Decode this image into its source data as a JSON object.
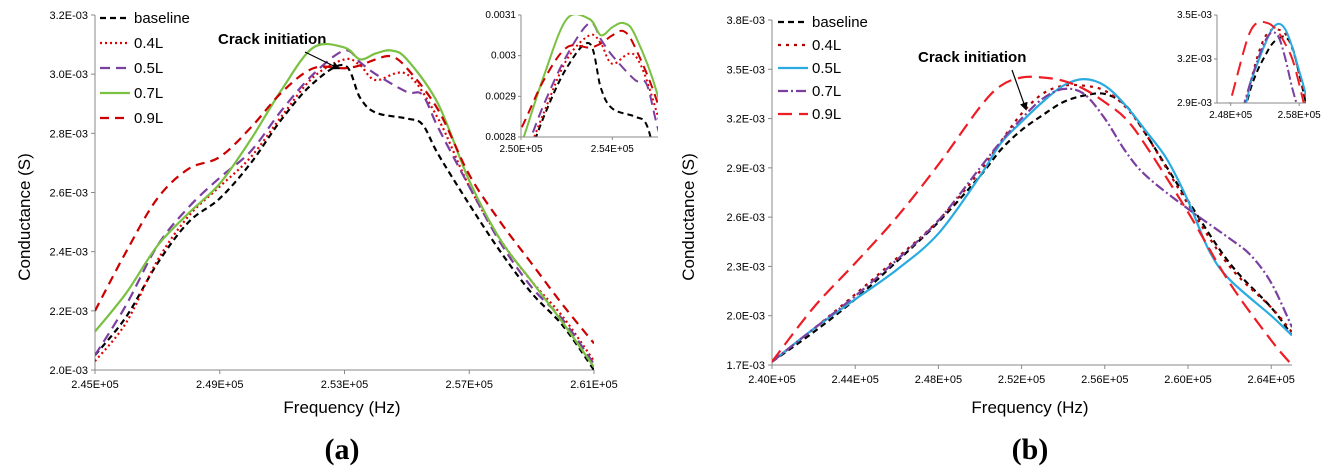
{
  "chart_data": [
    {
      "panel": "(a)",
      "type": "line",
      "xlabel": "Frequency  (Hz)",
      "ylabel": "Conductance (S)",
      "xlim": [
        245000,
        261000
      ],
      "ylim": [
        0.002,
        0.0032
      ],
      "xticks": [
        245000,
        249000,
        253000,
        257000,
        261000
      ],
      "xtick_labels": [
        "2.45E+05",
        "2.49E+05",
        "2.53E+05",
        "2.57E+05",
        "2.61E+05"
      ],
      "yticks": [
        0.002,
        0.0022,
        0.0024,
        0.0026,
        0.0028,
        0.003,
        0.0032
      ],
      "ytick_labels": [
        "2.0E-03",
        "2.2E-03",
        "2.4E-03",
        "2.6E-03",
        "2.8E-03",
        "3.0E-03",
        "3.2E-03"
      ],
      "legend_position": "top-left",
      "annotation": "Crack initiation",
      "annotation_point": [
        252800,
        0.00302
      ],
      "series": [
        {
          "name": "baseline",
          "color": "#000000",
          "dash": "6,4",
          "x": [
            245000,
            246000,
            247000,
            248000,
            249000,
            250000,
            251000,
            252000,
            253000,
            253500,
            254000,
            255000,
            255500,
            256000,
            257000,
            258000,
            259000,
            260000,
            261000
          ],
          "y": [
            0.00205,
            0.00218,
            0.00236,
            0.0025,
            0.00258,
            0.0027,
            0.00285,
            0.00297,
            0.00303,
            0.00292,
            0.00287,
            0.00285,
            0.00283,
            0.00273,
            0.00256,
            0.0024,
            0.00226,
            0.00215,
            0.002
          ]
        },
        {
          "name": "0.4L",
          "color": "#e00000",
          "dash": "2,3",
          "x": [
            245000,
            246000,
            247000,
            248000,
            249000,
            250000,
            251000,
            252000,
            253000,
            253500,
            254000,
            255000,
            256000,
            257000,
            258000,
            259000,
            260000,
            261000
          ],
          "y": [
            0.00203,
            0.00216,
            0.00237,
            0.00252,
            0.00262,
            0.00272,
            0.00286,
            0.00299,
            0.00305,
            0.00303,
            0.00298,
            0.003,
            0.00285,
            0.00262,
            0.00244,
            0.0023,
            0.00218,
            0.00203
          ]
        },
        {
          "name": "0.5L",
          "color": "#7b3fa0",
          "dash": "10,6",
          "x": [
            245000,
            246000,
            247000,
            248000,
            249000,
            250000,
            251000,
            252000,
            253000,
            253500,
            254000,
            255000,
            255500,
            256000,
            257000,
            258000,
            259000,
            260000,
            261000
          ],
          "y": [
            0.00205,
            0.00222,
            0.00242,
            0.00255,
            0.00265,
            0.00274,
            0.00288,
            0.003,
            0.00308,
            0.00304,
            0.003,
            0.00294,
            0.00293,
            0.00282,
            0.00262,
            0.00243,
            0.00228,
            0.00217,
            0.00202
          ]
        },
        {
          "name": "0.7L",
          "color": "#7ac142",
          "dash": "",
          "x": [
            245000,
            246000,
            247000,
            248000,
            249000,
            250000,
            251000,
            252000,
            253000,
            253500,
            254000,
            254500,
            255000,
            256000,
            257000,
            258000,
            259000,
            260000,
            261000
          ],
          "y": [
            0.00213,
            0.00226,
            0.00242,
            0.00253,
            0.00263,
            0.00278,
            0.00295,
            0.00309,
            0.00309,
            0.00305,
            0.00307,
            0.00308,
            0.00305,
            0.0029,
            0.00264,
            0.00244,
            0.0023,
            0.00216,
            0.00201
          ]
        },
        {
          "name": "0.9L",
          "color": "#cc0000",
          "dash": "9,6",
          "x": [
            245000,
            246000,
            247000,
            248000,
            249000,
            250000,
            251000,
            252000,
            253000,
            253500,
            254000,
            254500,
            255000,
            256000,
            257000,
            258000,
            259000,
            260000,
            261000
          ],
          "y": [
            0.0022,
            0.0024,
            0.00258,
            0.00268,
            0.00272,
            0.00282,
            0.00294,
            0.00302,
            0.00302,
            0.00303,
            0.00305,
            0.00306,
            0.00302,
            0.00288,
            0.00266,
            0.0025,
            0.00236,
            0.00222,
            0.00209
          ]
        }
      ],
      "inset": {
        "xlim": [
          250000,
          256000
        ],
        "ylim": [
          0.0028,
          0.0031
        ],
        "xticks": [
          250000,
          254000
        ],
        "xtick_labels": [
          "2.50E+05",
          "2.54E+05"
        ],
        "yticks": [
          0.0028,
          0.0029,
          0.003,
          0.0031
        ],
        "ytick_labels": [
          "0.0028",
          "0.0029",
          "0.003",
          "0.0031"
        ]
      }
    },
    {
      "panel": "(b)",
      "type": "line",
      "xlabel": "Frequency (Hz)",
      "ylabel": "Conductance (S)",
      "xlim": [
        240000,
        265000
      ],
      "ylim": [
        0.0017,
        0.0038
      ],
      "xticks": [
        240000,
        244000,
        248000,
        252000,
        256000,
        260000,
        264000
      ],
      "xtick_labels": [
        "2.40E+05",
        "2.44E+05",
        "2.48E+05",
        "2.52E+05",
        "2.56E+05",
        "2.60E+05",
        "2.64E+05"
      ],
      "yticks": [
        0.0017,
        0.002,
        0.0023,
        0.0026,
        0.0029,
        0.0032,
        0.0035,
        0.0038
      ],
      "ytick_labels": [
        "1.7E-03",
        "2.0E-03",
        "2.3E-03",
        "2.6E-03",
        "2.9E-03",
        "3.2E-03",
        "3.5E-03",
        "3.8E-03"
      ],
      "legend_position": "top-left",
      "annotation": "Crack initiation",
      "annotation_point": [
        252200,
        0.00326
      ],
      "series": [
        {
          "name": "baseline",
          "color": "#000000",
          "dash": "6,4",
          "x": [
            240000,
            242000,
            244000,
            246000,
            248000,
            250000,
            251000,
            252000,
            253000,
            254000,
            255000,
            256000,
            257000,
            258000,
            260000,
            262000,
            264000,
            265000
          ],
          "y": [
            0.00172,
            0.0019,
            0.0021,
            0.00233,
            0.00257,
            0.00285,
            0.00301,
            0.00313,
            0.00322,
            0.0033,
            0.00334,
            0.00335,
            0.00328,
            0.0031,
            0.0027,
            0.00232,
            0.00205,
            0.00188
          ]
        },
        {
          "name": "0.4L",
          "color": "#b00000",
          "dash": "3,5",
          "x": [
            240000,
            242000,
            244000,
            246000,
            248000,
            250000,
            251000,
            252000,
            253000,
            254000,
            255000,
            256000,
            257000,
            258000,
            260000,
            262000,
            264000,
            265000
          ],
          "y": [
            0.00172,
            0.00192,
            0.00213,
            0.00235,
            0.00258,
            0.00288,
            0.00306,
            0.00323,
            0.00335,
            0.0034,
            0.0034,
            0.00337,
            0.00327,
            0.0031,
            0.00268,
            0.0023,
            0.00205,
            0.0019
          ]
        },
        {
          "name": "0.5L",
          "color": "#29abe2",
          "dash": "",
          "x": [
            240000,
            242000,
            244000,
            246000,
            248000,
            250000,
            251000,
            252000,
            253000,
            254000,
            255000,
            256000,
            257000,
            258000,
            259000,
            260000,
            261000,
            262000,
            264000,
            265000
          ],
          "y": [
            0.00172,
            0.00192,
            0.0021,
            0.00228,
            0.0025,
            0.00285,
            0.00305,
            0.00318,
            0.0033,
            0.0034,
            0.00344,
            0.0034,
            0.00328,
            0.00312,
            0.00295,
            0.0027,
            0.0024,
            0.00222,
            0.002,
            0.00188
          ]
        },
        {
          "name": "0.7L",
          "color": "#7b3fa0",
          "dash": "10,3,2,3",
          "x": [
            240000,
            242000,
            244000,
            246000,
            248000,
            250000,
            251000,
            252000,
            253000,
            254000,
            255000,
            256000,
            257000,
            258000,
            260000,
            262000,
            263000,
            264000,
            265000
          ],
          "y": [
            0.00172,
            0.00192,
            0.00212,
            0.00234,
            0.00258,
            0.0029,
            0.00306,
            0.0032,
            0.00332,
            0.00338,
            0.00335,
            0.0032,
            0.003,
            0.00285,
            0.00265,
            0.00247,
            0.00237,
            0.0022,
            0.00193
          ]
        },
        {
          "name": "0.9L",
          "color": "#ee1c24",
          "dash": "14,7",
          "x": [
            240000,
            242000,
            244000,
            246000,
            248000,
            250000,
            251000,
            252000,
            253000,
            254000,
            255000,
            256000,
            257000,
            258000,
            260000,
            262000,
            264000,
            265000
          ],
          "y": [
            0.00172,
            0.00205,
            0.00232,
            0.0026,
            0.00292,
            0.00327,
            0.0034,
            0.00345,
            0.00345,
            0.00343,
            0.00338,
            0.0033,
            0.0032,
            0.00303,
            0.00263,
            0.0022,
            0.00185,
            0.0017
          ]
        }
      ],
      "inset": {
        "xlim": [
          246000,
          259000
        ],
        "ylim": [
          0.0029,
          0.0035
        ],
        "xticks": [
          248000,
          258000
        ],
        "xtick_labels": [
          "2.48E+05",
          "2.58E+05"
        ],
        "yticks": [
          0.0029,
          0.0032,
          0.0035
        ],
        "ytick_labels": [
          "2.9E-03",
          "3.2E-03",
          "3.5E-03"
        ]
      }
    }
  ]
}
